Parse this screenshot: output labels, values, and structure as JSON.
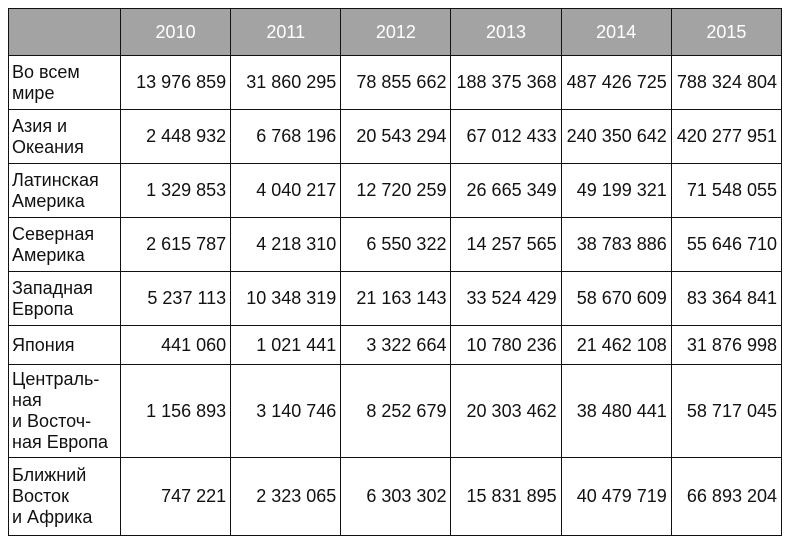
{
  "table": {
    "header": [
      "2010",
      "2011",
      "2012",
      "2013",
      "2014",
      "2015"
    ],
    "rows": [
      {
        "label": "Во всем\nмире",
        "values": [
          "13 976 859",
          "31 860 295",
          "78 855 662",
          "188 375 368",
          "487 426 725",
          "788 324 804"
        ]
      },
      {
        "label": "Азия и\nОкеания",
        "values": [
          "2 448 932",
          "6 768 196",
          "20 543 294",
          "67 012 433",
          "240 350 642",
          "420 277 951"
        ]
      },
      {
        "label": "Латинская\nАмерика",
        "values": [
          "1 329 853",
          "4 040 217",
          "12 720 259",
          "26 665 349",
          "49 199 321",
          "71 548 055"
        ]
      },
      {
        "label": "Северная\nАмерика",
        "values": [
          "2 615 787",
          "4 218 310",
          "6 550 322",
          "14 257 565",
          "38 783 886",
          "55 646 710"
        ]
      },
      {
        "label": "Западная\nЕвропа",
        "values": [
          "5 237 113",
          "10 348 319",
          "21 163 143",
          "33 524 429",
          "58 670 609",
          "83 364 841"
        ]
      },
      {
        "label": "Япония",
        "values": [
          "441 060",
          "1 021 441",
          "3 322 664",
          "10 780 236",
          "21 462 108",
          "31 876 998"
        ]
      },
      {
        "label": "Централь-\nная\nи Восточ-\nная Европа",
        "values": [
          "1 156 893",
          "3 140 746",
          "8 252 679",
          "20 303 462",
          "38 480 441",
          "58 717 045"
        ]
      },
      {
        "label": "Ближний\nВосток\nи Африка",
        "values": [
          "747 221",
          "2 323 065",
          "6 303 302",
          "15 831 895",
          "40 479 719",
          "66 893 204"
        ]
      }
    ]
  }
}
